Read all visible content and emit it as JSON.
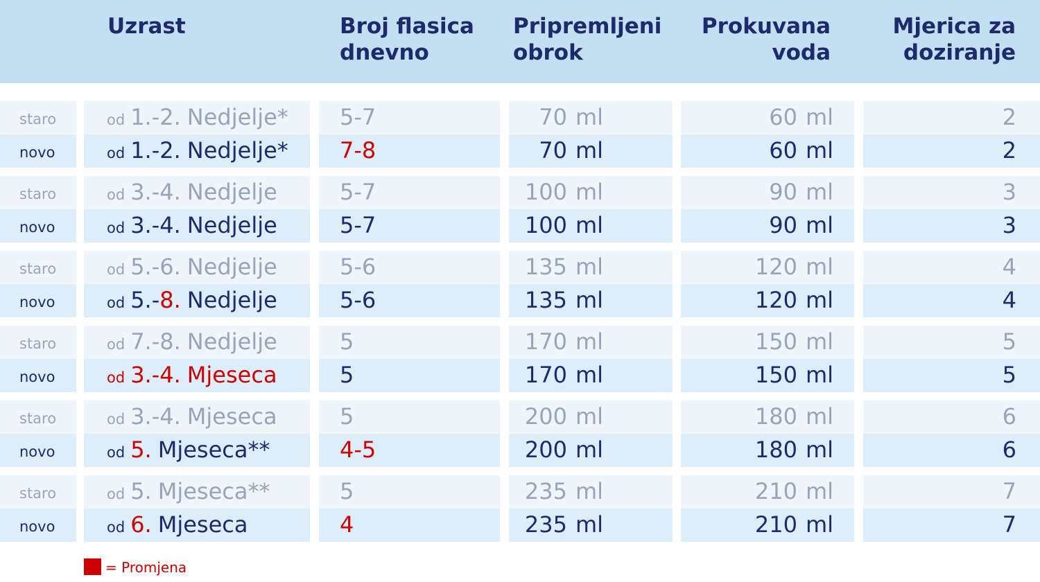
{
  "header": {
    "columns": [
      [
        "Uzrast"
      ],
      [
        "Broj flasica",
        "dnevno"
      ],
      [
        "Pripremljeni",
        "obrok"
      ],
      [
        "Prokuvana",
        "voda"
      ],
      [
        "Mjerica za",
        "doziranje"
      ]
    ]
  },
  "table": {
    "unit": "ml",
    "rows": [
      {
        "status": "staro",
        "age": {
          "prefix": "od",
          "number": [
            {
              "text": "1.-2."
            }
          ],
          "unit": "Nedjelje*"
        },
        "bottles": {
          "text": "5-7"
        },
        "meal": 70,
        "water": 60,
        "scoops": 2
      },
      {
        "status": "novo",
        "age": {
          "prefix": "od",
          "number": [
            {
              "text": "1.-2."
            }
          ],
          "unit": "Nedjelje*"
        },
        "bottles": {
          "text": "7-8",
          "changed": true
        },
        "meal": 70,
        "water": 60,
        "scoops": 2
      },
      {
        "status": "staro",
        "age": {
          "prefix": "od",
          "number": [
            {
              "text": "3.-4."
            }
          ],
          "unit": "Nedjelje"
        },
        "bottles": {
          "text": "5-7"
        },
        "meal": 100,
        "water": 90,
        "scoops": 3
      },
      {
        "status": "novo",
        "age": {
          "prefix": "od",
          "number": [
            {
              "text": "3.-4."
            }
          ],
          "unit": "Nedjelje"
        },
        "bottles": {
          "text": "5-7"
        },
        "meal": 100,
        "water": 90,
        "scoops": 3
      },
      {
        "status": "staro",
        "age": {
          "prefix": "od",
          "number": [
            {
              "text": "5.-6."
            }
          ],
          "unit": "Nedjelje"
        },
        "bottles": {
          "text": "5-6"
        },
        "meal": 135,
        "water": 120,
        "scoops": 4
      },
      {
        "status": "novo",
        "age": {
          "prefix": "od",
          "number": [
            {
              "text": "5.-"
            },
            {
              "text": "8.",
              "changed": true
            }
          ],
          "unit": "Nedjelje"
        },
        "bottles": {
          "text": "5-6"
        },
        "meal": 135,
        "water": 120,
        "scoops": 4
      },
      {
        "status": "staro",
        "age": {
          "prefix": "od",
          "number": [
            {
              "text": "7.-8."
            }
          ],
          "unit": "Nedjelje"
        },
        "bottles": {
          "text": "5"
        },
        "meal": 170,
        "water": 150,
        "scoops": 5
      },
      {
        "status": "novo",
        "age": {
          "prefix": "od",
          "number": [
            {
              "text": "3.-4."
            }
          ],
          "unit": "Mjeseca",
          "changed": true
        },
        "bottles": {
          "text": "5"
        },
        "meal": 170,
        "water": 150,
        "scoops": 5
      },
      {
        "status": "staro",
        "age": {
          "prefix": "od",
          "number": [
            {
              "text": "3.-4."
            }
          ],
          "unit": "Mjeseca"
        },
        "bottles": {
          "text": "5"
        },
        "meal": 200,
        "water": 180,
        "scoops": 6
      },
      {
        "status": "novo",
        "age": {
          "prefix": "od",
          "number": [
            {
              "text": "5.",
              "changed": true
            }
          ],
          "unit": "Mjeseca**"
        },
        "bottles": {
          "text": "4-5",
          "changed": true
        },
        "meal": 200,
        "water": 180,
        "scoops": 6
      },
      {
        "status": "staro",
        "age": {
          "prefix": "od",
          "number": [
            {
              "text": "5."
            }
          ],
          "unit": "Mjeseca**"
        },
        "bottles": {
          "text": "5"
        },
        "meal": 235,
        "water": 210,
        "scoops": 7
      },
      {
        "status": "novo",
        "age": {
          "prefix": "od",
          "number": [
            {
              "text": "6.",
              "changed": true
            }
          ],
          "unit": "Mjeseca"
        },
        "bottles": {
          "text": "4",
          "changed": true
        },
        "meal": 235,
        "water": 210,
        "scoops": 7
      }
    ]
  },
  "legend": {
    "label": "= Promjena"
  }
}
